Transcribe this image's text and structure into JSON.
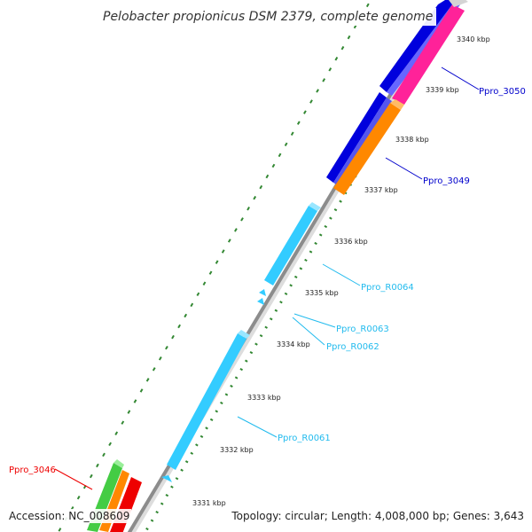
{
  "title": "Pelobacter propionicus DSM 2379, complete genome",
  "footer": {
    "accession": "Accession: NC_008609",
    "summary": "Topology: circular; Length: 4,008,000 bp; Genes: 3,643"
  },
  "ticks": [
    "3331 kbp",
    "3332 kbp",
    "3333 kbp",
    "3334 kbp",
    "3335 kbp",
    "3336 kbp",
    "3337 kbp",
    "3338 kbp",
    "3339 kbp",
    "3340 kbp"
  ],
  "gene_labels": [
    {
      "text": "Ppro_3050",
      "color": "#0000cc"
    },
    {
      "text": "Ppro_3049",
      "color": "#0000cc"
    },
    {
      "text": "Ppro_R0064",
      "color": "#22bbee"
    },
    {
      "text": "Ppro_R0063",
      "color": "#22bbee"
    },
    {
      "text": "Ppro_R0062",
      "color": "#22bbee"
    },
    {
      "text": "Ppro_R0061",
      "color": "#22bbee"
    },
    {
      "text": "Ppro_3046",
      "color": "#ee0000"
    }
  ],
  "colors": {
    "backbone": "#8c8c8c",
    "dots": "#338833",
    "cds_blue": "#0000dd",
    "cds_magenta": "#ff2299",
    "cds_orange": "#ff8800",
    "rna_cyan": "#33ccff",
    "cds_red": "#ee0000",
    "cds_green": "#44cc44"
  }
}
